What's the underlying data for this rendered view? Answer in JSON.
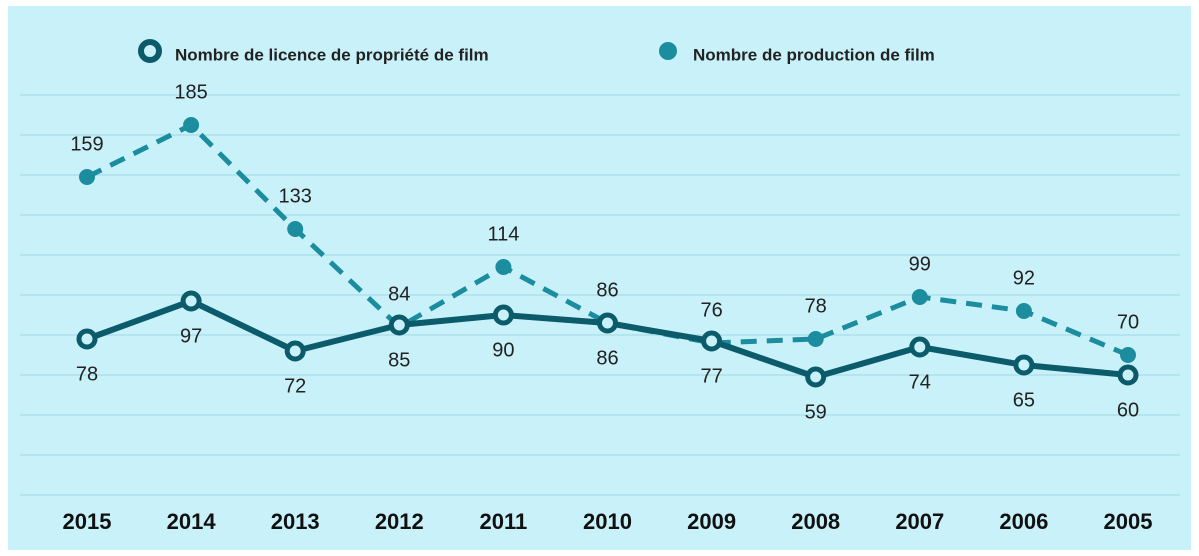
{
  "chart_data": {
    "type": "line",
    "categories": [
      "2015",
      "2014",
      "2013",
      "2012",
      "2011",
      "2010",
      "2009",
      "2008",
      "2007",
      "2006",
      "2005"
    ],
    "series": [
      {
        "name": "Nombre de licence de propriété de film",
        "color": "#0b5b6b",
        "dashed": false,
        "values": [
          78,
          97,
          72,
          85,
          90,
          86,
          77,
          59,
          74,
          65,
          60
        ]
      },
      {
        "name": "Nombre de production de film",
        "color": "#1b8d9e",
        "dashed": true,
        "values": [
          159,
          185,
          133,
          84,
          114,
          86,
          76,
          78,
          99,
          92,
          70
        ]
      }
    ],
    "ylim": [
      0,
      200
    ],
    "yticks": [
      0,
      20,
      40,
      60,
      80,
      100,
      120,
      140,
      160,
      180,
      200
    ],
    "grid": true
  }
}
